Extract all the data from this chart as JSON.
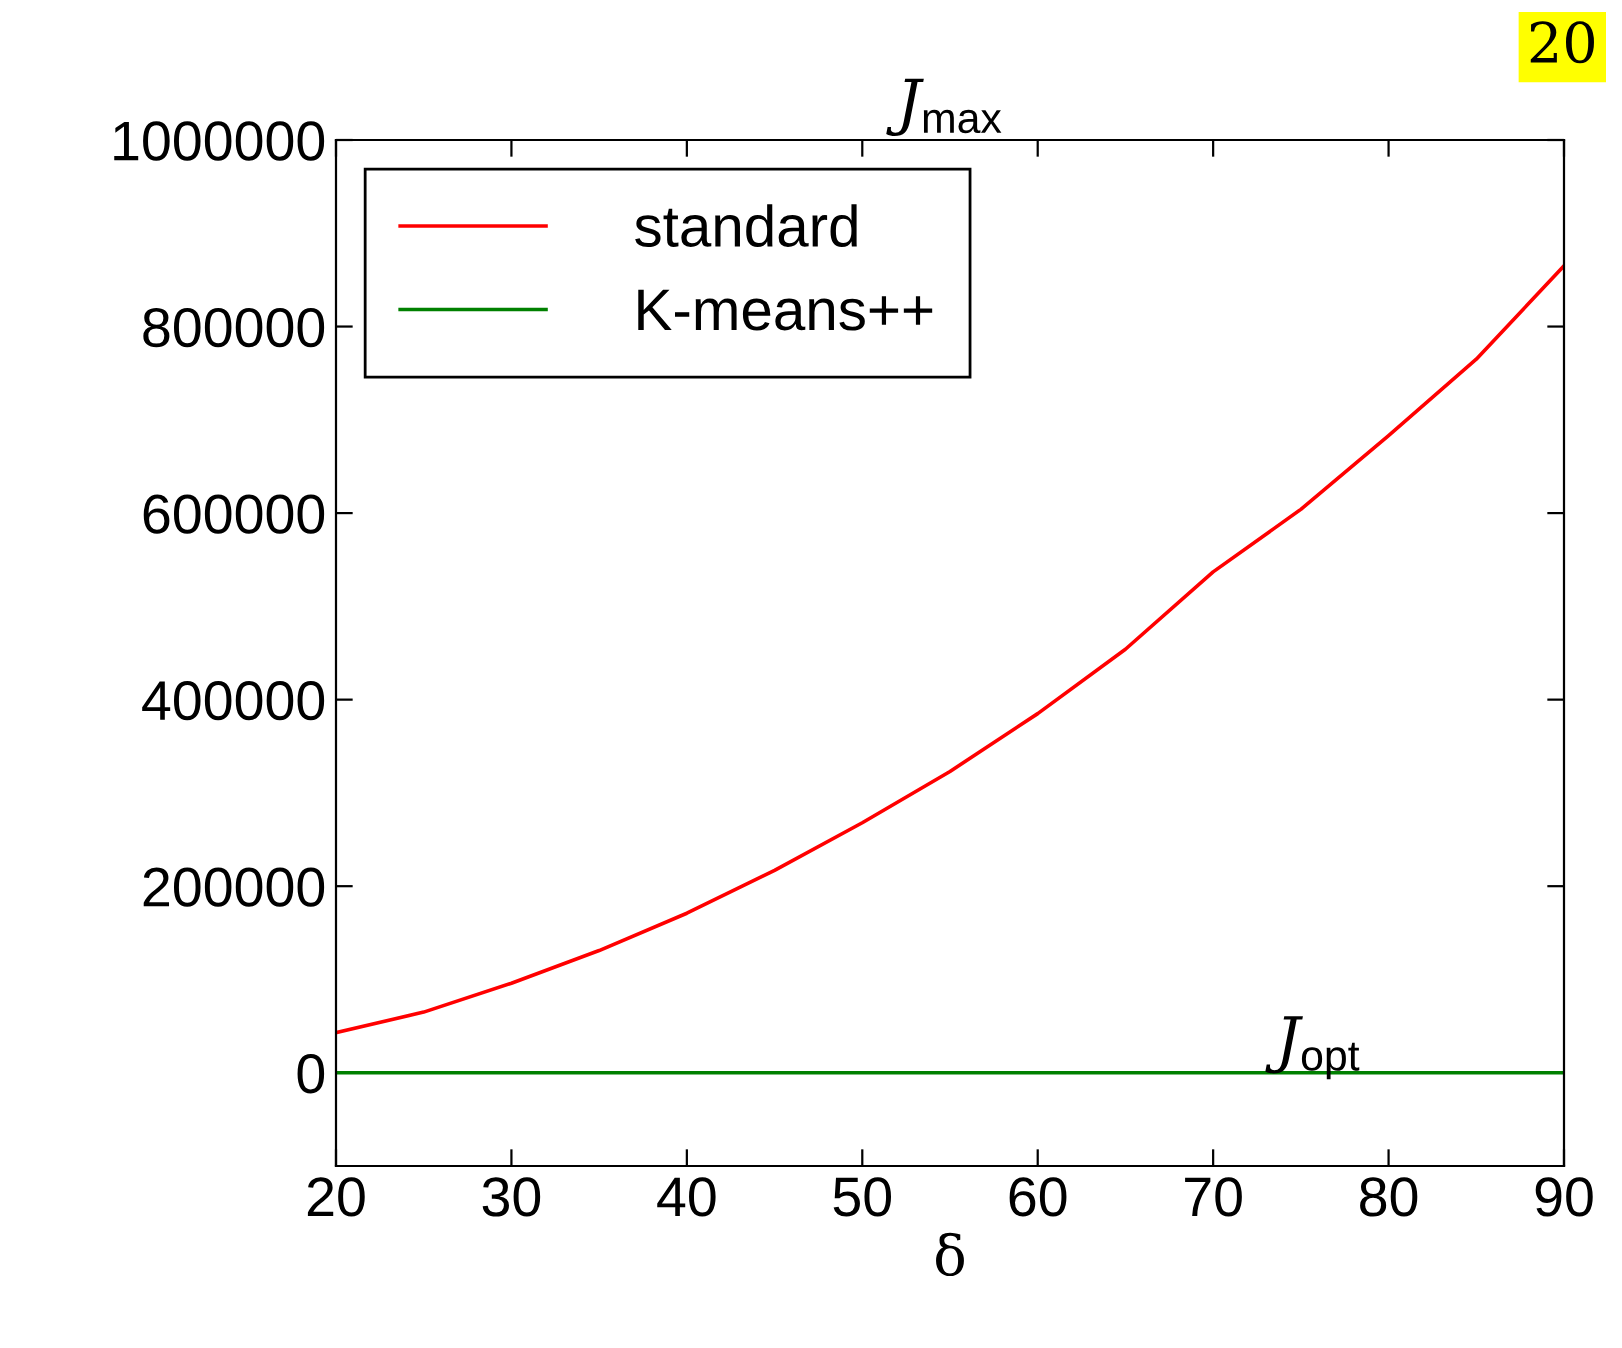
{
  "chart_data": {
    "type": "line",
    "title": "J$_{max}$",
    "xlabel": "δ",
    "x": [
      20,
      25,
      30,
      35,
      40,
      45,
      50,
      55,
      60,
      65,
      70,
      75,
      80,
      85,
      90
    ],
    "series": [
      {
        "name": "standard",
        "color": "#ff0000",
        "values": [
          43000,
          65000,
          96000,
          131000,
          171000,
          217000,
          268000,
          323000,
          385000,
          454000,
          537000,
          604000,
          683000,
          765000,
          865000
        ]
      },
      {
        "name": "K-means++",
        "color": "#008000",
        "values": [
          0,
          0,
          0,
          0,
          0,
          0,
          0,
          0,
          0,
          0,
          0,
          0,
          0,
          0,
          0
        ]
      }
    ],
    "annotations": [
      "J$_{opt}$",
      "20"
    ],
    "xlim": [
      20,
      90
    ],
    "xticks": [
      20,
      30,
      40,
      50,
      60,
      70,
      80,
      90
    ],
    "ylim": [
      -100000,
      1000000
    ],
    "yticks": [
      0,
      200000,
      400000,
      600000,
      800000,
      1000000
    ],
    "grid": false,
    "legend": "top left",
    "marker": "none",
    "line_style": "solid"
  }
}
